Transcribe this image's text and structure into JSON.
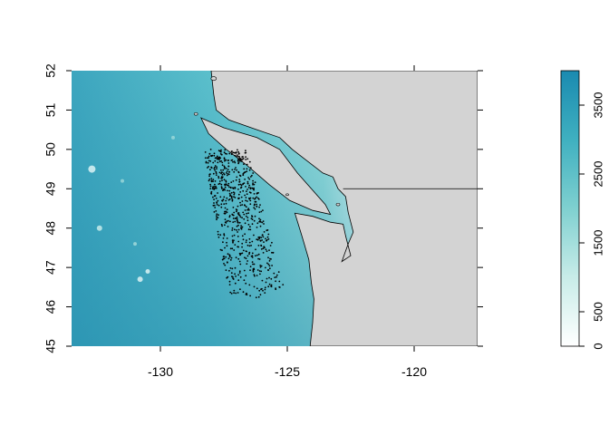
{
  "chart_data": {
    "type": "map",
    "xlim": [
      -133.5,
      -117.5
    ],
    "ylim": [
      45,
      52
    ],
    "x_ticks": [
      {
        "value": -130,
        "label": "-130"
      },
      {
        "value": -125,
        "label": "-125"
      },
      {
        "value": -120,
        "label": "-120"
      }
    ],
    "y_ticks": [
      {
        "value": 45,
        "label": "45"
      },
      {
        "value": 46,
        "label": "46"
      },
      {
        "value": 47,
        "label": "47"
      },
      {
        "value": 48,
        "label": "48"
      },
      {
        "value": 49,
        "label": "49"
      },
      {
        "value": 50,
        "label": "50"
      },
      {
        "value": 51,
        "label": "51"
      },
      {
        "value": 52,
        "label": "52"
      }
    ],
    "land_color": "#d3d3d3",
    "border_lat": 49,
    "colorbar": {
      "range": [
        0,
        4000
      ],
      "ticks": [
        {
          "value": 0,
          "label": "0"
        },
        {
          "value": 500,
          "label": "500"
        },
        {
          "value": 1500,
          "label": "1500"
        },
        {
          "value": 2500,
          "label": "2500"
        },
        {
          "value": 3500,
          "label": "3500"
        }
      ],
      "colors": [
        "#ffffff",
        "#c8ece8",
        "#7fd0d0",
        "#3fb0c0",
        "#1a8ab0"
      ]
    },
    "points_region": {
      "description_free": true,
      "count": 700,
      "lat_range": [
        46.2,
        50.0
      ]
    }
  }
}
